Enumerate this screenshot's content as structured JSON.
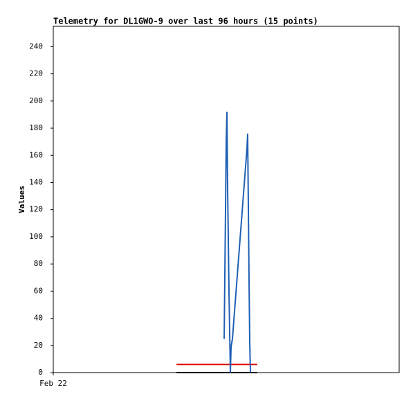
{
  "chart_data": {
    "type": "line",
    "title": "Telemetry for DL1GWO-9 over last 96 hours (15 points)",
    "y_label": "Values",
    "xlim": [
      0,
      96
    ],
    "xticks": [
      {
        "value": 0,
        "label": "Feb 22"
      }
    ],
    "ylim": [
      0,
      255
    ],
    "yticks": [
      0,
      20,
      40,
      60,
      80,
      100,
      120,
      140,
      160,
      180,
      200,
      220,
      240
    ],
    "series": [
      {
        "color": "#000000",
        "x": [
          34.2,
          56.6
        ],
        "values": [
          0,
          0
        ]
      },
      {
        "color": "#e00000",
        "x": [
          34.2,
          56.6
        ],
        "values": [
          6,
          6
        ]
      },
      {
        "color": "#1f5fb4",
        "x": [
          47.43,
          47.62,
          47.81,
          48.0,
          48.2,
          48.39,
          48.77,
          49.15,
          49.35,
          49.73,
          53.76,
          53.95,
          54.34,
          54.53,
          54.72
        ],
        "values": [
          25,
          72,
          120,
          170,
          192,
          135,
          60,
          0,
          19,
          25,
          165,
          176,
          67,
          22,
          0
        ]
      }
    ]
  }
}
